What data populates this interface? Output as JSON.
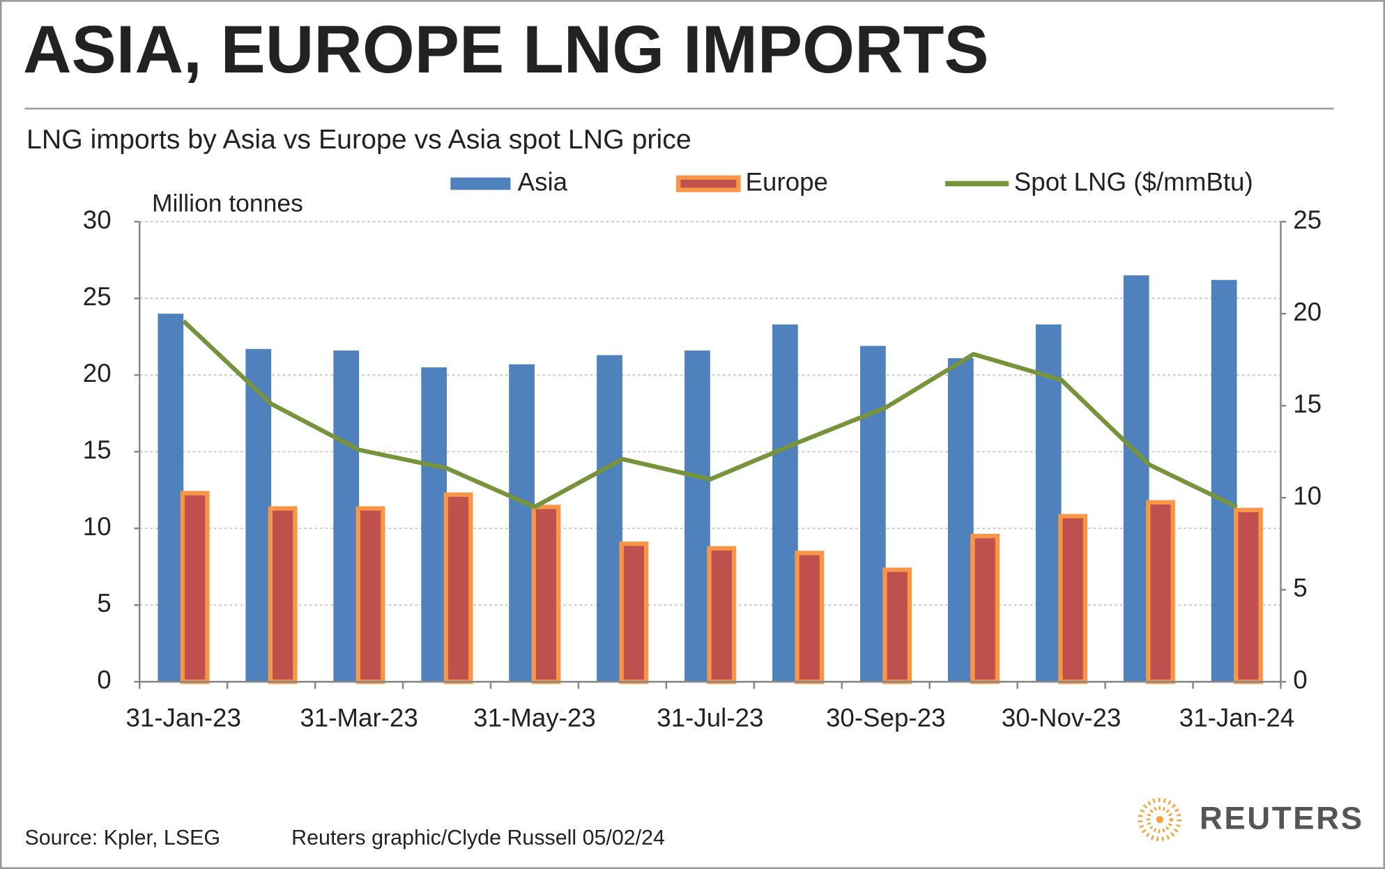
{
  "chart_data": {
    "type": "bar_line",
    "title": "ASIA, EUROPE LNG IMPORTS",
    "subtitle": "LNG imports by Asia vs Europe vs Asia spot LNG price",
    "y_label": "Million tonnes",
    "categories": [
      "31-Jan-23",
      null,
      "31-Mar-23",
      null,
      "31-May-23",
      null,
      "31-Jul-23",
      null,
      "30-Sep-23",
      null,
      "30-Nov-23",
      null,
      "31-Jan-24"
    ],
    "series": [
      {
        "name": "Asia",
        "type": "bar",
        "color": "#4f81bd",
        "values": [
          24.0,
          21.7,
          21.6,
          20.5,
          20.7,
          21.3,
          21.6,
          23.3,
          21.9,
          21.1,
          23.3,
          26.5,
          26.2
        ]
      },
      {
        "name": "Europe",
        "type": "bar",
        "color": "#c0504d",
        "edge_color": "#f79646",
        "values": [
          12.3,
          11.3,
          11.3,
          12.2,
          11.4,
          9.0,
          8.7,
          8.4,
          7.3,
          9.5,
          10.8,
          11.7,
          11.2
        ]
      },
      {
        "name": "Spot LNG ($/mmBtu)",
        "type": "line",
        "axis": "y2",
        "color": "#77933c",
        "values": [
          19.6,
          15.1,
          12.6,
          11.6,
          9.5,
          12.1,
          11.0,
          13.0,
          14.9,
          17.8,
          16.4,
          11.8,
          9.5
        ]
      }
    ],
    "ylim": [
      0,
      30
    ],
    "yticks": [
      0,
      5,
      10,
      15,
      20,
      25,
      30
    ],
    "y2lim": [
      0,
      25
    ],
    "y2ticks": [
      0,
      5,
      10,
      15,
      20,
      25
    ],
    "grid": true,
    "source": "Source: Kpler, LSEG",
    "credit": "Reuters graphic/Clyde Russell 05/02/24",
    "logo": "REUTERS"
  }
}
